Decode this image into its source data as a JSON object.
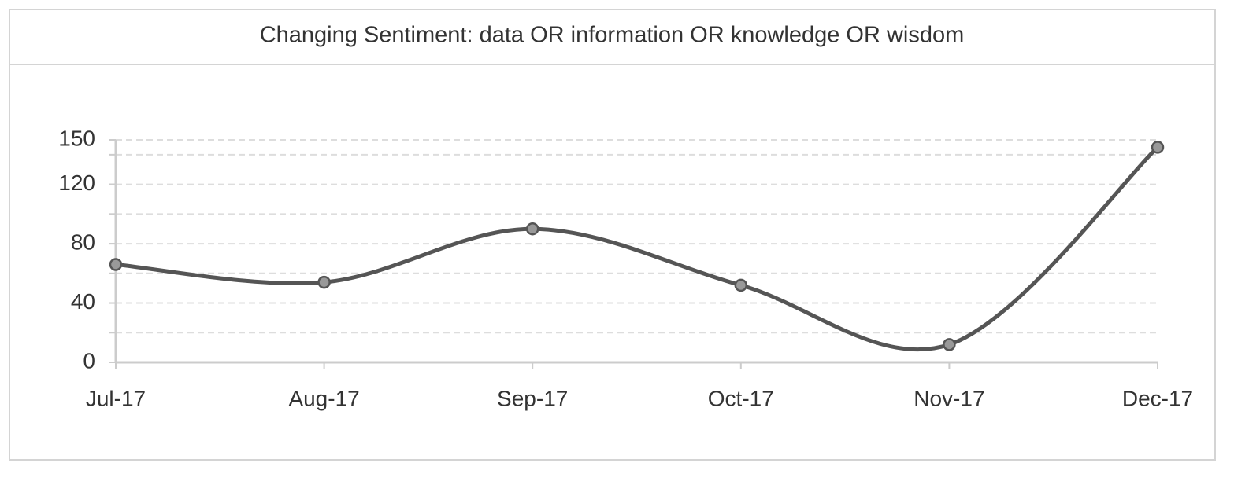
{
  "chart_data": {
    "type": "line",
    "title": "Changing Sentiment: data OR information OR knowledge OR wisdom",
    "categories": [
      "Jul-17",
      "Aug-17",
      "Sep-17",
      "Oct-17",
      "Nov-17",
      "Dec-17"
    ],
    "series": [
      {
        "color": "#555555",
        "values": [
          66,
          54,
          90,
          52,
          12,
          145
        ]
      }
    ],
    "ylim": [
      0,
      150
    ],
    "yticks": [
      0,
      40,
      80,
      120,
      150
    ],
    "grid": true,
    "grid_lines": [
      20,
      40,
      60,
      80,
      100,
      120,
      140,
      150
    ],
    "smooth": true
  }
}
